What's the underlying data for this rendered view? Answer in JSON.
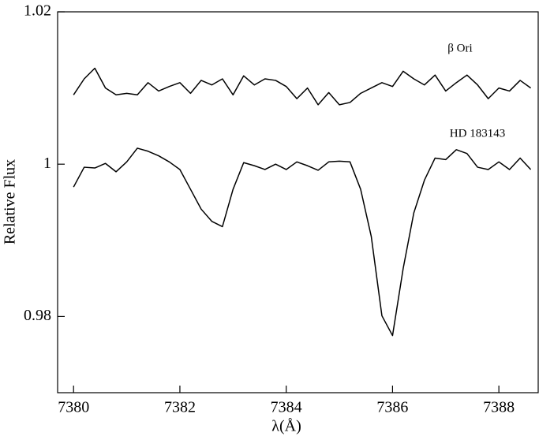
{
  "chart_data": {
    "type": "line",
    "x_label": "λ(Å)",
    "y_label": "Relative Flux",
    "x": [
      7380.0,
      7380.2,
      7380.4,
      7380.6,
      7380.8,
      7381.0,
      7381.2,
      7381.4,
      7381.6,
      7381.8,
      7382.0,
      7382.2,
      7382.4,
      7382.6,
      7382.8,
      7383.0,
      7383.2,
      7383.4,
      7383.6,
      7383.8,
      7384.0,
      7384.2,
      7384.4,
      7384.6,
      7384.8,
      7385.0,
      7385.2,
      7385.4,
      7385.6,
      7385.8,
      7386.0,
      7386.2,
      7386.4,
      7386.6,
      7386.8,
      7387.0,
      7387.2,
      7387.4,
      7387.6,
      7387.8,
      7388.0,
      7388.2,
      7388.4,
      7388.6
    ],
    "series": [
      {
        "name": "β Ori",
        "color": "#000000",
        "values": [
          1.0091,
          1.0112,
          1.0126,
          1.01,
          1.0091,
          1.0093,
          1.0091,
          1.0107,
          1.0096,
          1.0102,
          1.0107,
          1.0093,
          1.011,
          1.0104,
          1.0112,
          1.0091,
          1.0116,
          1.0104,
          1.0112,
          1.011,
          1.0102,
          1.0086,
          1.01,
          1.0078,
          1.0094,
          1.0078,
          1.0081,
          1.0093,
          1.01,
          1.0107,
          1.0102,
          1.0122,
          1.0112,
          1.0104,
          1.0117,
          1.0096,
          1.0107,
          1.0117,
          1.0104,
          1.0086,
          1.01,
          1.0096,
          1.011,
          1.01
        ]
      },
      {
        "name": "HD 183143",
        "color": "#000000",
        "values": [
          0.997,
          0.9996,
          0.9995,
          1.0001,
          0.999,
          1.0003,
          1.0021,
          1.0017,
          1.0011,
          1.0003,
          0.9993,
          0.9967,
          0.9941,
          0.9925,
          0.9918,
          0.9967,
          1.0002,
          0.9998,
          0.9993,
          1.0,
          0.9993,
          1.0003,
          0.9998,
          0.9992,
          1.0003,
          1.0004,
          1.0003,
          0.9967,
          0.9905,
          0.9801,
          0.9775,
          0.9863,
          0.9936,
          0.9979,
          1.0008,
          1.0006,
          1.0019,
          1.0014,
          0.9996,
          0.9993,
          1.0003,
          0.9993,
          1.0008,
          0.9993
        ]
      }
    ],
    "xlim": [
      7379.7,
      7388.74
    ],
    "xticks": [
      7380,
      7382,
      7384,
      7386,
      7388
    ],
    "ylim": [
      0.97,
      1.02
    ],
    "yticks": [
      0.98,
      1,
      1.02
    ]
  }
}
